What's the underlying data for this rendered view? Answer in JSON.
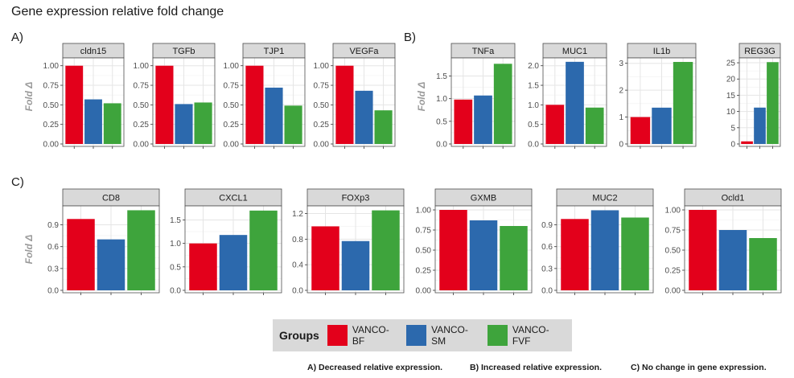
{
  "title": "Gene expression relative fold change",
  "y_axis_label": "Fold Δ",
  "colors": {
    "VANCO-BF": "#e3001b",
    "VANCO-SM": "#2c69ad",
    "VANCO-FVF": "#3ea43c"
  },
  "legend": {
    "title": "Groups",
    "items": [
      "VANCO-BF",
      "VANCO-SM",
      "VANCO-FVF"
    ]
  },
  "captions": {
    "a": "A) Decreased relative expression.",
    "b": "B) Increased relative expression.",
    "c": "C) No change in gene expression."
  },
  "chart_data": [
    {
      "panel_label": "A)",
      "type": "bar",
      "facets": [
        {
          "title": "cldn15",
          "ylim": [
            0,
            1.1
          ],
          "ticks": [
            0.0,
            0.25,
            0.5,
            0.75,
            1.0
          ],
          "tick_labels": [
            "0.00",
            "0.25",
            "0.50",
            "0.75",
            "1.00"
          ],
          "values": [
            1.0,
            0.57,
            0.52
          ]
        },
        {
          "title": "TGFb",
          "ylim": [
            0,
            1.1
          ],
          "ticks": [
            0.0,
            0.25,
            0.5,
            0.75,
            1.0
          ],
          "tick_labels": [
            "0.00",
            "0.25",
            "0.50",
            "0.75",
            "1.00"
          ],
          "values": [
            1.0,
            0.51,
            0.53
          ]
        },
        {
          "title": "TJP1",
          "ylim": [
            0,
            1.1
          ],
          "ticks": [
            0.0,
            0.25,
            0.5,
            0.75,
            1.0
          ],
          "tick_labels": [
            "0.00",
            "0.25",
            "0.50",
            "0.75",
            "1.00"
          ],
          "values": [
            1.0,
            0.72,
            0.49
          ]
        },
        {
          "title": "VEGFa",
          "ylim": [
            0,
            1.1
          ],
          "ticks": [
            0.0,
            0.25,
            0.5,
            0.75,
            1.0
          ],
          "tick_labels": [
            "0.00",
            "0.25",
            "0.50",
            "0.75",
            "1.00"
          ],
          "values": [
            1.0,
            0.68,
            0.43
          ]
        }
      ]
    },
    {
      "panel_label": "B)",
      "type": "bar",
      "facets": [
        {
          "title": "TNFa",
          "ylim": [
            0,
            1.9
          ],
          "ticks": [
            0.0,
            0.5,
            1.0,
            1.5
          ],
          "tick_labels": [
            "0.0",
            "0.5",
            "1.0",
            "1.5"
          ],
          "values": [
            0.98,
            1.07,
            1.77
          ]
        },
        {
          "title": "MUC1",
          "ylim": [
            0,
            2.2
          ],
          "ticks": [
            0.0,
            0.5,
            1.0,
            1.5,
            2.0
          ],
          "tick_labels": [
            "0.0",
            "0.5",
            "1.0",
            "1.5",
            "2.0"
          ],
          "values": [
            1.0,
            2.1,
            0.93
          ]
        },
        {
          "title": "IL1b",
          "ylim": [
            0,
            3.2
          ],
          "ticks": [
            0,
            1,
            2,
            3
          ],
          "tick_labels": [
            "0",
            "1",
            "2",
            "3"
          ],
          "values": [
            1.0,
            1.35,
            3.05
          ]
        },
        {
          "title": "REG3G",
          "ylim": [
            0,
            26.5
          ],
          "ticks": [
            0,
            5,
            10,
            15,
            20,
            25
          ],
          "tick_labels": [
            "0",
            "5",
            "10",
            "15",
            "20",
            "25"
          ],
          "values": [
            0.8,
            11.2,
            25.2
          ]
        }
      ]
    },
    {
      "panel_label": "C)",
      "type": "bar",
      "facets": [
        {
          "title": "CD8",
          "ylim": [
            0,
            1.16
          ],
          "ticks": [
            0.0,
            0.3,
            0.6,
            0.9
          ],
          "tick_labels": [
            "0.0",
            "0.3",
            "0.6",
            "0.9"
          ],
          "values": [
            0.98,
            0.7,
            1.1
          ]
        },
        {
          "title": "CXCL1",
          "ylim": [
            0,
            1.8
          ],
          "ticks": [
            0.0,
            0.5,
            1.0,
            1.5
          ],
          "tick_labels": [
            "0.0",
            "0.5",
            "1.0",
            "1.5"
          ],
          "values": [
            1.0,
            1.18,
            1.7
          ]
        },
        {
          "title": "FOXp3",
          "ylim": [
            0,
            1.32
          ],
          "ticks": [
            0.0,
            0.4,
            0.8,
            1.2
          ],
          "tick_labels": [
            "0.0",
            "0.4",
            "0.8",
            "1.2"
          ],
          "values": [
            1.0,
            0.77,
            1.25
          ]
        },
        {
          "title": "GXMB",
          "ylim": [
            0,
            1.05
          ],
          "ticks": [
            0.0,
            0.25,
            0.5,
            0.75,
            1.0
          ],
          "tick_labels": [
            "0.00",
            "0.25",
            "0.50",
            "0.75",
            "1.00"
          ],
          "values": [
            1.0,
            0.87,
            0.8
          ]
        },
        {
          "title": "MUC2",
          "ylim": [
            0,
            1.16
          ],
          "ticks": [
            0.0,
            0.3,
            0.6,
            0.9
          ],
          "tick_labels": [
            "0.0",
            "0.3",
            "0.6",
            "0.9"
          ],
          "values": [
            0.98,
            1.1,
            1.0
          ]
        },
        {
          "title": "Ocld1",
          "ylim": [
            0,
            1.05
          ],
          "ticks": [
            0.0,
            0.25,
            0.5,
            0.75,
            1.0
          ],
          "tick_labels": [
            "0.00",
            "0.25",
            "0.50",
            "0.75",
            "1.00"
          ],
          "values": [
            1.0,
            0.75,
            0.65
          ]
        }
      ]
    }
  ]
}
